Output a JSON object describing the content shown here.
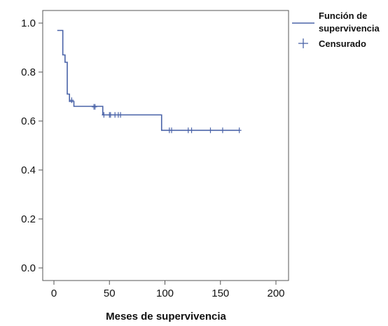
{
  "chart_data": {
    "type": "line",
    "xlabel": "Meses de supervivencia",
    "ylabel": "",
    "xlim": [
      0,
      200
    ],
    "ylim": [
      0,
      1
    ],
    "x_ticks": [
      0,
      50,
      100,
      150,
      200
    ],
    "y_ticks": [
      0.0,
      0.2,
      0.4,
      0.6,
      0.8,
      1.0
    ],
    "x_tick_labels": [
      "0",
      "50",
      "100",
      "150",
      "200"
    ],
    "y_tick_labels": [
      "0.0",
      "0.2",
      "0.4",
      "0.6",
      "0.8",
      "1.0"
    ],
    "grid": false,
    "legend_position": "top-right",
    "series": [
      {
        "name": "Función de supervivencia",
        "style": "step",
        "color": "#4a63a8",
        "points": [
          [
            3,
            0.97
          ],
          [
            8,
            0.87
          ],
          [
            10,
            0.84
          ],
          [
            12,
            0.71
          ],
          [
            14,
            0.68
          ],
          [
            18,
            0.66
          ],
          [
            44,
            0.625
          ],
          [
            97,
            0.625
          ],
          [
            97,
            0.562
          ],
          [
            167,
            0.562
          ]
        ]
      }
    ],
    "censored": {
      "name": "Censurado",
      "marker": "plus",
      "color": "#4a63a8",
      "points": [
        [
          16,
          0.685
        ],
        [
          36,
          0.658
        ],
        [
          37,
          0.658
        ],
        [
          45,
          0.625
        ],
        [
          50,
          0.625
        ],
        [
          51,
          0.625
        ],
        [
          55,
          0.625
        ],
        [
          58,
          0.625
        ],
        [
          60,
          0.625
        ],
        [
          104,
          0.562
        ],
        [
          106,
          0.562
        ],
        [
          121,
          0.562
        ],
        [
          124,
          0.562
        ],
        [
          141,
          0.562
        ],
        [
          152,
          0.562
        ],
        [
          167,
          0.562
        ]
      ]
    },
    "legend": {
      "line_label_line1": "Función de",
      "line_label_line2": "supervivencia",
      "censored_label": "Censurado"
    }
  }
}
